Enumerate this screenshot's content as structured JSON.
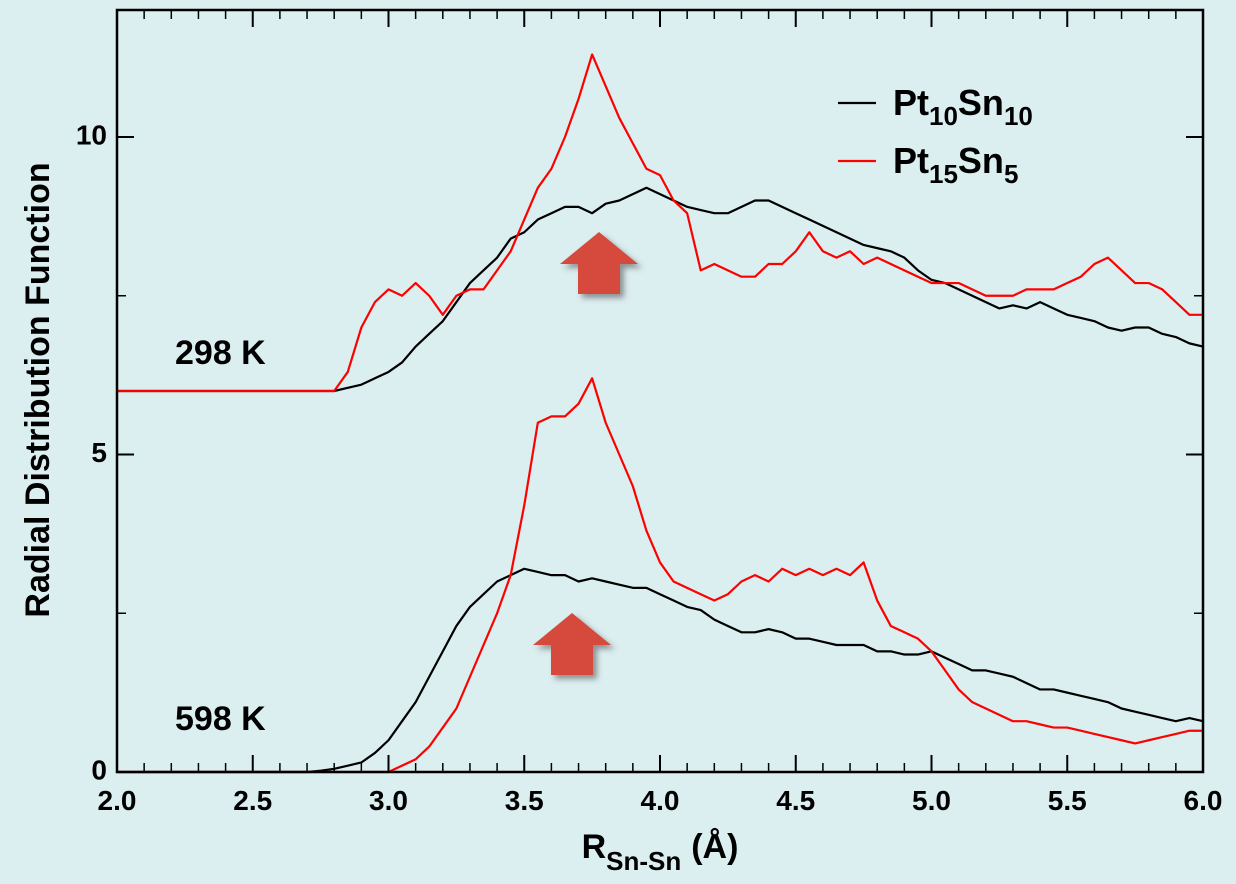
{
  "chart_data": {
    "type": "line",
    "y_label": "Radial Distribution Function",
    "x_label": "R",
    "x_label_subscript": "Sn-Sn",
    "x_label_unit": "(Å)",
    "curve_labels": [
      "298 K",
      "598 K"
    ],
    "xlim": [
      2,
      6
    ],
    "ylim": [
      0,
      12
    ],
    "xticks": [
      {
        "value": 2,
        "label": "2.0"
      },
      {
        "value": 2.5,
        "label": "2.5"
      },
      {
        "value": 3,
        "label": "3.0"
      },
      {
        "value": 3.5,
        "label": "3.5"
      },
      {
        "value": 4,
        "label": "4.0"
      },
      {
        "value": 4.5,
        "label": "4.5"
      },
      {
        "value": 5,
        "label": "5.0"
      },
      {
        "value": 5.5,
        "label": "5.5"
      },
      {
        "value": 6,
        "label": "6.0"
      }
    ],
    "yticks": [
      0,
      5,
      10
    ],
    "legend": "upper right",
    "x": [
      2,
      2.05,
      2.1,
      2.15,
      2.2,
      2.25,
      2.3,
      2.35,
      2.4,
      2.45,
      2.5,
      2.55,
      2.6,
      2.65,
      2.7,
      2.75,
      2.8,
      2.85,
      2.9,
      2.95,
      3,
      3.05,
      3.1,
      3.15,
      3.2,
      3.25,
      3.3,
      3.35,
      3.4,
      3.45,
      3.5,
      3.55,
      3.6,
      3.65,
      3.7,
      3.75,
      3.8,
      3.85,
      3.9,
      3.95,
      4,
      4.05,
      4.1,
      4.15,
      4.2,
      4.25,
      4.3,
      4.35,
      4.4,
      4.45,
      4.5,
      4.55,
      4.6,
      4.65,
      4.7,
      4.75,
      4.8,
      4.85,
      4.9,
      4.95,
      5,
      5.05,
      5.1,
      5.15,
      5.2,
      5.25,
      5.3,
      5.35,
      5.4,
      5.45,
      5.5,
      5.55,
      5.6,
      5.65,
      5.7,
      5.75,
      5.8,
      5.85,
      5.9,
      5.95,
      6
    ],
    "series": [
      {
        "name": "Pt10Sn10",
        "color": "#000000",
        "curves": [
          [
            6,
            6,
            6,
            6,
            6,
            6,
            6,
            6,
            6,
            6,
            6,
            6,
            6,
            6,
            6,
            6,
            6,
            6.05,
            6.1,
            6.2,
            6.3,
            6.45,
            6.7,
            6.9,
            7.1,
            7.4,
            7.7,
            7.9,
            8.1,
            8.4,
            8.5,
            8.7,
            8.8,
            8.9,
            8.9,
            8.8,
            8.95,
            9,
            9.1,
            9.2,
            9.1,
            9,
            8.9,
            8.85,
            8.8,
            8.8,
            8.9,
            9,
            9,
            8.9,
            8.8,
            8.7,
            8.6,
            8.5,
            8.4,
            8.3,
            8.25,
            8.2,
            8.1,
            7.9,
            7.75,
            7.7,
            7.6,
            7.5,
            7.4,
            7.3,
            7.35,
            7.3,
            7.4,
            7.3,
            7.2,
            7.15,
            7.1,
            7,
            6.95,
            7,
            7,
            6.9,
            6.85,
            6.75,
            6.7
          ],
          [
            0,
            0,
            0,
            0,
            0,
            0,
            0,
            0,
            0,
            0,
            0,
            0,
            0,
            0,
            0,
            0.02,
            0.05,
            0.1,
            0.15,
            0.3,
            0.5,
            0.8,
            1.1,
            1.5,
            1.9,
            2.3,
            2.6,
            2.8,
            3,
            3.1,
            3.2,
            3.15,
            3.1,
            3.1,
            3,
            3.05,
            3,
            2.95,
            2.9,
            2.9,
            2.8,
            2.7,
            2.6,
            2.55,
            2.4,
            2.3,
            2.2,
            2.2,
            2.25,
            2.2,
            2.1,
            2.1,
            2.05,
            2,
            2,
            2,
            1.9,
            1.9,
            1.85,
            1.85,
            1.9,
            1.8,
            1.7,
            1.6,
            1.6,
            1.55,
            1.5,
            1.4,
            1.3,
            1.3,
            1.25,
            1.2,
            1.15,
            1.1,
            1,
            0.95,
            0.9,
            0.85,
            0.8,
            0.85,
            0.8
          ]
        ]
      },
      {
        "name": "Pt15Sn5",
        "color": "#ff0000",
        "curves": [
          [
            6,
            6,
            6,
            6,
            6,
            6,
            6,
            6,
            6,
            6,
            6,
            6,
            6,
            6,
            6,
            6,
            6,
            6.3,
            7,
            7.4,
            7.6,
            7.5,
            7.7,
            7.5,
            7.2,
            7.5,
            7.6,
            7.6,
            7.9,
            8.2,
            8.7,
            9.2,
            9.5,
            10,
            10.6,
            11.3,
            10.8,
            10.3,
            9.9,
            9.5,
            9.4,
            9,
            8.8,
            7.9,
            8,
            7.9,
            7.8,
            7.8,
            8,
            8,
            8.2,
            8.5,
            8.2,
            8.1,
            8.2,
            8,
            8.1,
            8,
            7.9,
            7.8,
            7.7,
            7.7,
            7.7,
            7.6,
            7.5,
            7.5,
            7.5,
            7.6,
            7.6,
            7.6,
            7.7,
            7.8,
            8,
            8.1,
            7.9,
            7.7,
            7.7,
            7.6,
            7.4,
            7.2,
            7.2
          ],
          [
            0,
            0,
            0,
            0,
            0,
            0,
            0,
            0,
            0,
            0,
            0,
            0,
            0,
            0,
            0,
            0,
            0,
            0,
            0,
            0,
            0,
            0.1,
            0.2,
            0.4,
            0.7,
            1,
            1.5,
            2,
            2.5,
            3.1,
            4.2,
            5.5,
            5.6,
            5.6,
            5.8,
            6.2,
            5.5,
            5,
            4.5,
            3.8,
            3.3,
            3,
            2.9,
            2.8,
            2.7,
            2.8,
            3,
            3.1,
            3,
            3.2,
            3.1,
            3.2,
            3.1,
            3.2,
            3.1,
            3.3,
            2.7,
            2.3,
            2.2,
            2.1,
            1.9,
            1.6,
            1.3,
            1.1,
            1,
            0.9,
            0.8,
            0.8,
            0.75,
            0.7,
            0.7,
            0.65,
            0.6,
            0.55,
            0.5,
            0.45,
            0.5,
            0.55,
            0.6,
            0.65,
            0.65
          ]
        ]
      }
    ]
  }
}
